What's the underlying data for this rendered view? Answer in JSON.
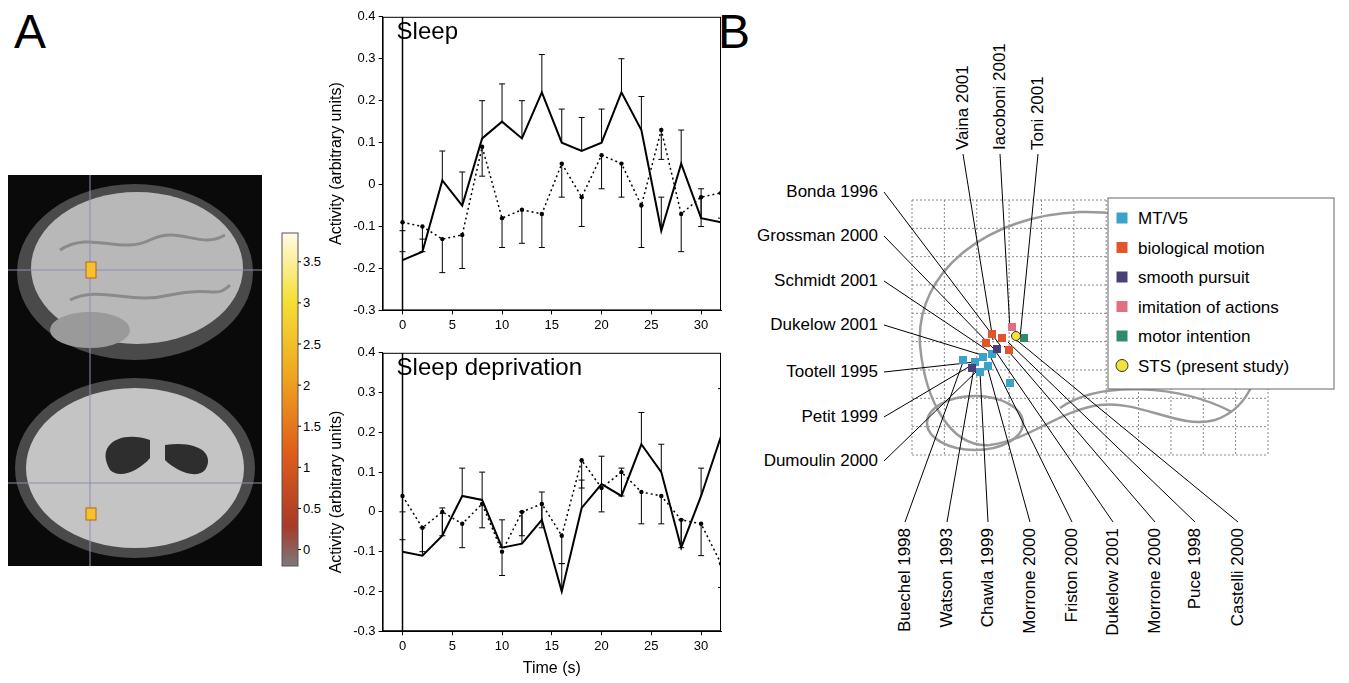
{
  "panel_letters": [
    "A",
    "B"
  ],
  "colorbar": {
    "range": [
      -0.2,
      3.85
    ],
    "ticks": [
      0,
      0.5,
      1,
      1.5,
      2,
      2.5,
      3,
      3.5
    ]
  },
  "chart_data": [
    {
      "type": "line",
      "title": "Sleep",
      "y_label": "Activity (arbitrary units)",
      "x": [
        0,
        2,
        4,
        6,
        8,
        10,
        12,
        14,
        16,
        18,
        20,
        22,
        24,
        26,
        28,
        30,
        32
      ],
      "xlim": [
        -2,
        32
      ],
      "xticks": [
        0,
        5,
        10,
        15,
        20,
        25,
        30
      ],
      "ylim": [
        -0.3,
        0.4
      ],
      "yticks": [
        -0.3,
        -0.2,
        -0.1,
        0,
        0.1,
        0.2,
        0.3,
        0.4
      ],
      "grid": false,
      "vertical_lines": [
        0
      ],
      "series": [
        {
          "color": "#000000",
          "line_style": "solid",
          "marker": "none",
          "values": [
            -0.18,
            -0.16,
            0.01,
            -0.05,
            0.11,
            0.15,
            0.11,
            0.22,
            0.1,
            0.08,
            0.1,
            0.22,
            0.13,
            -0.11,
            0.05,
            -0.08,
            -0.09
          ],
          "error_plus": [
            0.02,
            0.03,
            0.07,
            0.08,
            0.09,
            0.09,
            0.09,
            0.09,
            0.08,
            0.08,
            0.08,
            0.08,
            0.08,
            0.08,
            0.08,
            0.07,
            0.07
          ]
        },
        {
          "color": "#000000",
          "line_style": "dotted",
          "marker": "circle",
          "values": [
            -0.09,
            -0.1,
            -0.13,
            -0.12,
            0.09,
            -0.08,
            -0.06,
            -0.07,
            0.05,
            -0.03,
            0.07,
            0.05,
            -0.05,
            0.13,
            -0.07,
            -0.03,
            -0.02
          ],
          "error_minus": [
            0.02,
            0.06,
            0.08,
            0.08,
            0.07,
            0.07,
            0.08,
            0.08,
            0.08,
            0.07,
            0.08,
            0.08,
            0.1,
            0.07,
            0.09,
            0.07,
            0.06
          ]
        }
      ]
    },
    {
      "type": "line",
      "title": "Sleep deprivation",
      "y_label": "Activity (arbitrary units)",
      "x_label": "Time (s)",
      "x": [
        0,
        2,
        4,
        6,
        8,
        10,
        12,
        14,
        16,
        18,
        20,
        22,
        24,
        26,
        28,
        30,
        32
      ],
      "xlim": [
        -2,
        32
      ],
      "xticks": [
        0,
        5,
        10,
        15,
        20,
        25,
        30
      ],
      "ylim": [
        -0.3,
        0.4
      ],
      "yticks": [
        -0.3,
        -0.2,
        -0.1,
        0,
        0.1,
        0.2,
        0.3,
        0.4
      ],
      "grid": false,
      "vertical_lines": [
        0
      ],
      "series": [
        {
          "color": "#000000",
          "line_style": "solid",
          "marker": "none",
          "values": [
            -0.1,
            -0.11,
            -0.06,
            0.04,
            0.03,
            -0.09,
            -0.08,
            -0.02,
            -0.2,
            0.01,
            0.07,
            0.04,
            0.17,
            0.1,
            -0.09,
            0.04,
            0.19
          ],
          "error_plus": [
            0.03,
            0.07,
            0.07,
            0.07,
            0.07,
            0.07,
            0.08,
            0.07,
            0.07,
            0.07,
            0.07,
            0.07,
            0.08,
            0.07,
            0.07,
            0.07,
            0.12
          ]
        },
        {
          "color": "#000000",
          "line_style": "dotted",
          "marker": "circle",
          "values": [
            0.04,
            -0.04,
            0.0,
            -0.03,
            0.02,
            -0.1,
            0.0,
            0.02,
            -0.06,
            0.13,
            0.06,
            0.1,
            0.05,
            0.04,
            -0.02,
            -0.03,
            -0.13
          ],
          "error_minus": [
            0.04,
            0.06,
            0.06,
            0.06,
            0.06,
            0.06,
            0.06,
            0.06,
            0.07,
            0.07,
            0.06,
            0.06,
            0.08,
            0.07,
            0.07,
            0.08,
            0.06
          ]
        }
      ]
    }
  ],
  "diagram": {
    "top_labels": [
      "Vaina 2001",
      "Iacoboni 2001",
      "Toni 2001"
    ],
    "left_labels": [
      "Bonda 1996",
      "Grossman 2000",
      "Schmidt 2001",
      "Dukelow 2001",
      "Tootell 1995",
      "Petit 1999",
      "Dumoulin 2000"
    ],
    "bottom_labels": [
      "Buechel 1998",
      "Watson 1993",
      "Chawla 1999",
      "Morrone 2000",
      "Friston 2000",
      "Dukelow 2001",
      "Morrone 2000",
      "Puce 1998",
      "Castelli 2000"
    ],
    "legend": [
      {
        "label": "MT/V5",
        "color": "#3ba3c8",
        "marker": "square"
      },
      {
        "label": "biological motion",
        "color": "#e0552b",
        "marker": "square"
      },
      {
        "label": "smooth pursuit",
        "color": "#4b3f7a",
        "marker": "square"
      },
      {
        "label": "imitation of actions",
        "color": "#e07080",
        "marker": "square"
      },
      {
        "label": "motor intention",
        "color": "#2e8b6f",
        "marker": "square"
      },
      {
        "label": "STS (present study)",
        "color": "#f2e33a",
        "marker": "circle"
      }
    ],
    "foci": [
      "biological motion",
      "biological motion",
      "biological motion",
      "biological motion",
      "imitation of actions",
      "motor intention",
      "MT/V5",
      "MT/V5",
      "MT/V5",
      "MT/V5",
      "MT/V5",
      "MT/V5",
      "MT/V5",
      "smooth pursuit",
      "smooth pursuit",
      "STS (present study)"
    ]
  }
}
